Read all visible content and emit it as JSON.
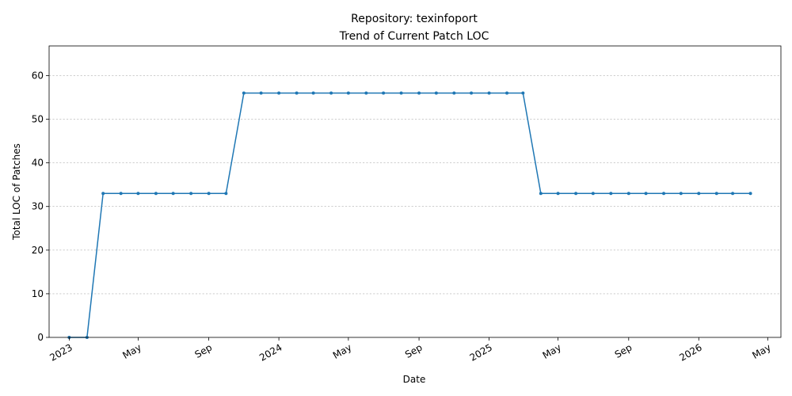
{
  "chart_data": {
    "type": "line",
    "title": "Repository: texinfoport",
    "subtitle": "Trend of Current Patch LOC",
    "xlabel": "Date",
    "ylabel": "Total LOC of Patches",
    "ylim": [
      0,
      66.8
    ],
    "xlim": [
      "2022-11-27",
      "2026-05-24"
    ],
    "y_ticks": [
      0,
      10,
      20,
      30,
      40,
      50,
      60
    ],
    "x_ticks": [
      {
        "date": "2023-01-01",
        "label": "2023"
      },
      {
        "date": "2023-05-01",
        "label": "May"
      },
      {
        "date": "2023-09-01",
        "label": "Sep"
      },
      {
        "date": "2024-01-01",
        "label": "2024"
      },
      {
        "date": "2024-05-01",
        "label": "May"
      },
      {
        "date": "2024-09-01",
        "label": "Sep"
      },
      {
        "date": "2025-01-01",
        "label": "2025"
      },
      {
        "date": "2025-05-01",
        "label": "May"
      },
      {
        "date": "2025-09-01",
        "label": "Sep"
      },
      {
        "date": "2026-01-01",
        "label": "2026"
      },
      {
        "date": "2026-05-01",
        "label": "May"
      }
    ],
    "grid": "y",
    "line_color": "#1f77b4",
    "series": [
      {
        "x": [
          "2023-01-01",
          "2023-02-01",
          "2023-03-01",
          "2023-04-01",
          "2023-05-01",
          "2023-06-01",
          "2023-07-01",
          "2023-08-01",
          "2023-09-01",
          "2023-10-01",
          "2023-11-01",
          "2023-12-01",
          "2024-01-01",
          "2024-02-01",
          "2024-03-01",
          "2024-04-01",
          "2024-05-01",
          "2024-06-01",
          "2024-07-01",
          "2024-08-01",
          "2024-09-01",
          "2024-10-01",
          "2024-11-01",
          "2024-12-01",
          "2025-01-01",
          "2025-02-01",
          "2025-03-01",
          "2025-04-01",
          "2025-05-01",
          "2025-06-01",
          "2025-07-01",
          "2025-08-01",
          "2025-09-01",
          "2025-10-01",
          "2025-11-01",
          "2025-12-01",
          "2026-01-01",
          "2026-02-01",
          "2026-03-01",
          "2026-04-01"
        ],
        "values": [
          0,
          0,
          33,
          33,
          33,
          33,
          33,
          33,
          33,
          33,
          56,
          56,
          56,
          56,
          56,
          56,
          56,
          56,
          56,
          56,
          56,
          56,
          56,
          56,
          56,
          56,
          56,
          33,
          33,
          33,
          33,
          33,
          33,
          33,
          33,
          33,
          33,
          33,
          33,
          33
        ]
      }
    ]
  }
}
